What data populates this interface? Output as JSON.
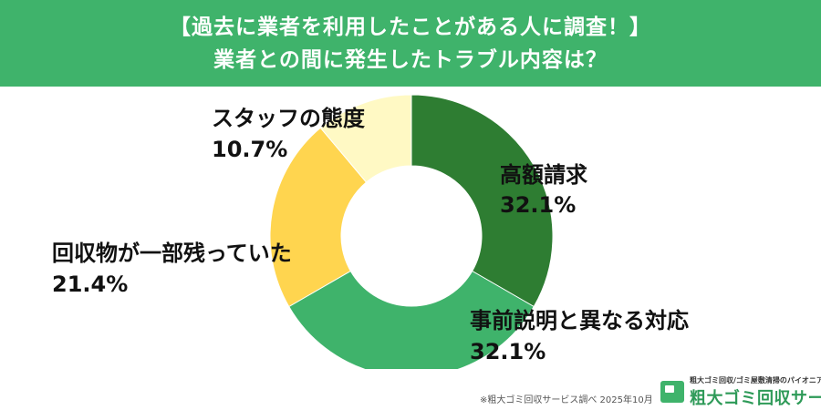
{
  "header": {
    "title_line1": "【過去に業者を利用したことがある人に調査！】",
    "title_line2": "業者との間に発生したトラブル内容は？",
    "background_color": "#3fb36b"
  },
  "chart_data": {
    "type": "pie",
    "variant": "donut",
    "title": "【過去に業者を利用したことがある人に調査！】業者との間に発生したトラブル内容は？",
    "unit": "%",
    "slices": [
      {
        "label": "高額請求",
        "value": 32.1,
        "value_label": "32.1%",
        "color": "#2e7d32"
      },
      {
        "label": "事前説明と異なる対応",
        "value": 32.1,
        "value_label": "32.1%",
        "color": "#3fb36b"
      },
      {
        "label": "回収物が一部残っていた",
        "value": 21.4,
        "value_label": "21.4%",
        "color": "#ffd54f"
      },
      {
        "label": "スタッフの態度",
        "value": 10.7,
        "value_label": "10.7%",
        "color": "#fff9c4"
      }
    ],
    "legend": "none"
  },
  "footer": {
    "note": "※粗大ゴミ回収サービス調べ 2025年10月",
    "logo_tagline": "粗大ゴミ回収/ゴミ屋敷清掃のパイオニア",
    "logo_name": "粗大ゴミ回収サービス",
    "logo_icon": "truck-icon"
  }
}
